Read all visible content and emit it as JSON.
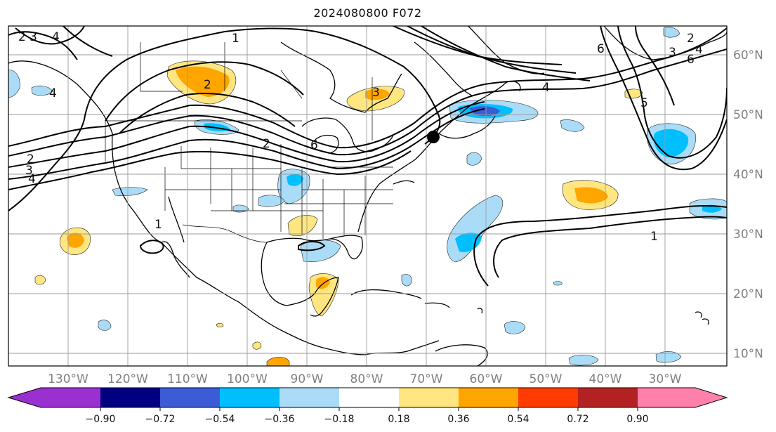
{
  "title": "2024080800 F072",
  "longitude_labels": [
    "130°W",
    "120°W",
    "110°W",
    "100°W",
    "90°W",
    "80°W",
    "70°W",
    "60°W",
    "50°W",
    "40°W",
    "30°W"
  ],
  "latitude_labels": [
    "60°N",
    "50°N",
    "40°N",
    "30°N",
    "20°N",
    "10°N"
  ],
  "colorbar": {
    "ticks": [
      "−0.90",
      "−0.72",
      "−0.54",
      "−0.36",
      "−0.18",
      "0.18",
      "0.36",
      "0.54",
      "0.72",
      "0.90"
    ],
    "colors": [
      "#9b30d0",
      "#000080",
      "#3c5bd6",
      "#00bfff",
      "#aadcf8",
      "#ffffff",
      "#ffe680",
      "#ffa500",
      "#ff3c00",
      "#b22222",
      "#ff80aa"
    ]
  },
  "contour_labels": [
    "2",
    "3",
    "4",
    "1",
    "2",
    "3",
    "4",
    "6",
    "3",
    "2",
    "4",
    "2",
    "6",
    "4",
    "3",
    "2",
    "1",
    "5",
    "6",
    "4",
    "1"
  ],
  "marker": "storm-center"
}
